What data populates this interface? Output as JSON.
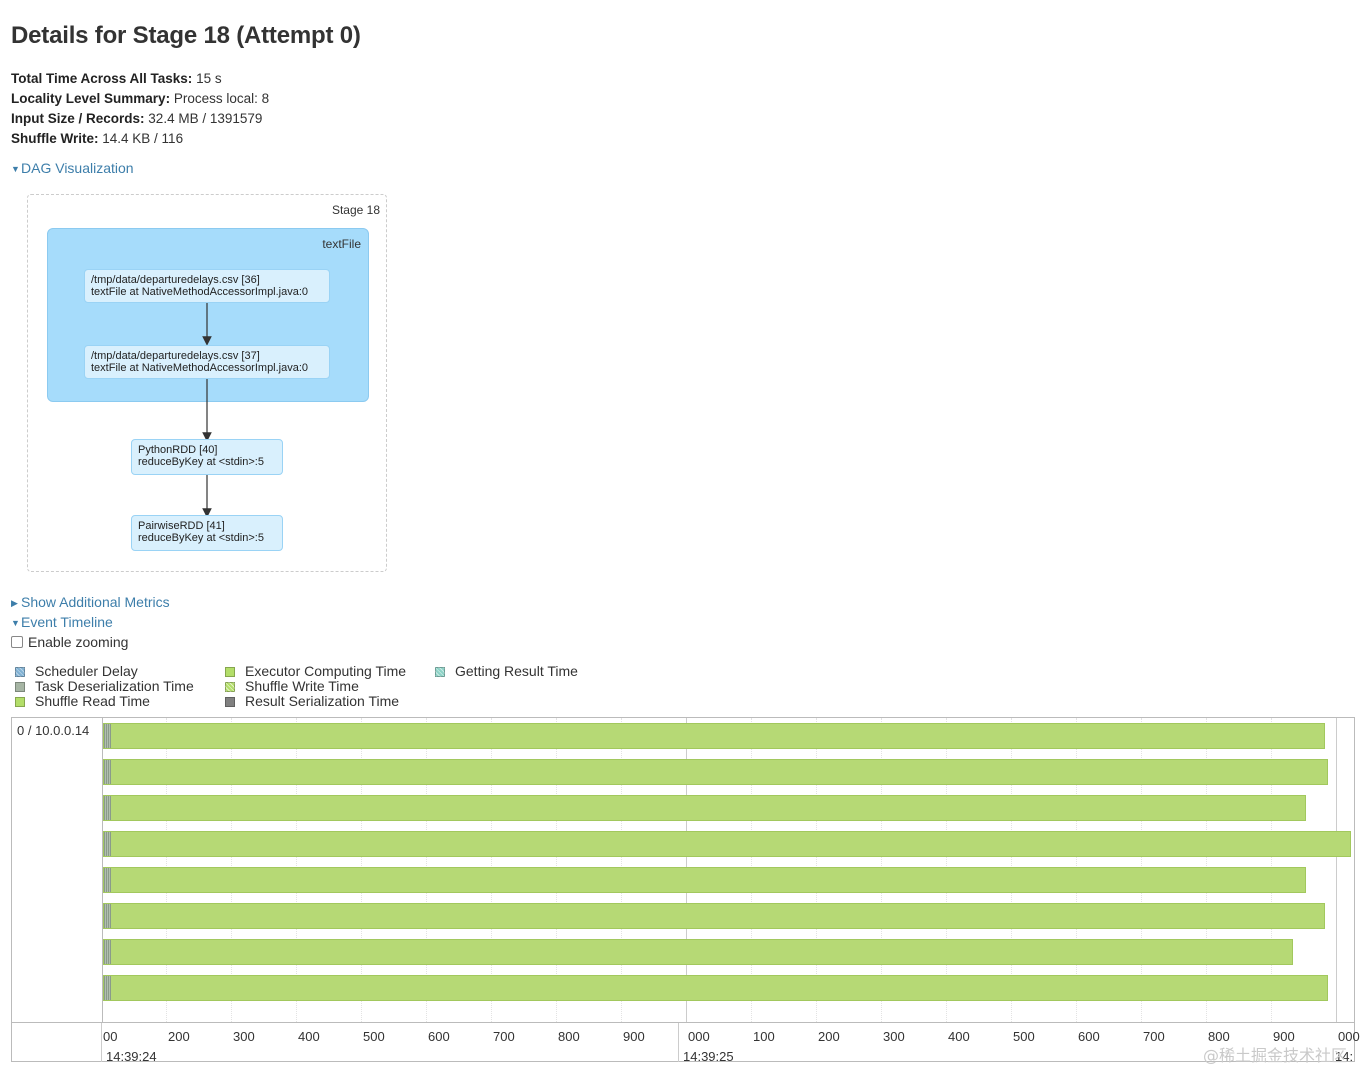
{
  "page": {
    "title": "Details for Stage 18 (Attempt 0)"
  },
  "summary": [
    {
      "label": "Total Time Across All Tasks:",
      "value": "15 s"
    },
    {
      "label": "Locality Level Summary:",
      "value": "Process local: 8"
    },
    {
      "label": "Input Size / Records:",
      "value": "32.4 MB / 1391579"
    },
    {
      "label": "Shuffle Write:",
      "value": "14.4 KB / 116"
    }
  ],
  "dag_toggle": {
    "label": "DAG Visualization",
    "expanded": true
  },
  "dag": {
    "stage_label": "Stage 18",
    "cluster_label": "textFile",
    "nodes": [
      {
        "line1": "/tmp/data/departuredelays.csv [36]",
        "line2": "textFile at NativeMethodAccessorImpl.java:0"
      },
      {
        "line1": "/tmp/data/departuredelays.csv [37]",
        "line2": "textFile at NativeMethodAccessorImpl.java:0"
      },
      {
        "line1": "PythonRDD [40]",
        "line2": "reduceByKey at <stdin>:5"
      },
      {
        "line1": "PairwiseRDD [41]",
        "line2": "reduceByKey at <stdin>:5"
      }
    ]
  },
  "metrics_toggle": {
    "label": "Show Additional Metrics",
    "expanded": false
  },
  "timeline_toggle": {
    "label": "Event Timeline",
    "expanded": true
  },
  "zoom": {
    "label": "Enable zooming",
    "checked": false
  },
  "legend": [
    {
      "label": "Scheduler Delay",
      "color": "#80b1d3"
    },
    {
      "label": "Task Deserialization Time",
      "color": "#8dd3c7"
    },
    {
      "label": "Shuffle Read Time",
      "color": "#b3de69"
    },
    {
      "label": "Executor Computing Time",
      "color": "#b3de69"
    },
    {
      "label": "Shuffle Write Time",
      "color": "#b3de69"
    },
    {
      "label": "Result Serialization Time",
      "color": "#808080"
    },
    {
      "label": "Getting Result Time",
      "color": "#8dd3c7"
    }
  ],
  "timeline": {
    "executor_label": "0 / 10.0.0.14",
    "task_color": "#b6d975",
    "tasks": [
      {
        "start_ms": 0,
        "end_ms": 1880
      },
      {
        "start_ms": 0,
        "end_ms": 1885
      },
      {
        "start_ms": 0,
        "end_ms": 1850
      },
      {
        "start_ms": 0,
        "end_ms": 1920
      },
      {
        "start_ms": 0,
        "end_ms": 1850
      },
      {
        "start_ms": 0,
        "end_ms": 1880
      },
      {
        "start_ms": 0,
        "end_ms": 1830
      },
      {
        "start_ms": 0,
        "end_ms": 1885
      }
    ],
    "ticks": [
      "00",
      "200",
      "300",
      "400",
      "500",
      "600",
      "700",
      "800",
      "900",
      "000",
      "100",
      "200",
      "300",
      "400",
      "500",
      "600",
      "700",
      "800",
      "900",
      "000"
    ],
    "major_labels": [
      "14:39:24",
      "14:39:25",
      "14:"
    ]
  },
  "watermark": "@稀土掘金技术社区"
}
